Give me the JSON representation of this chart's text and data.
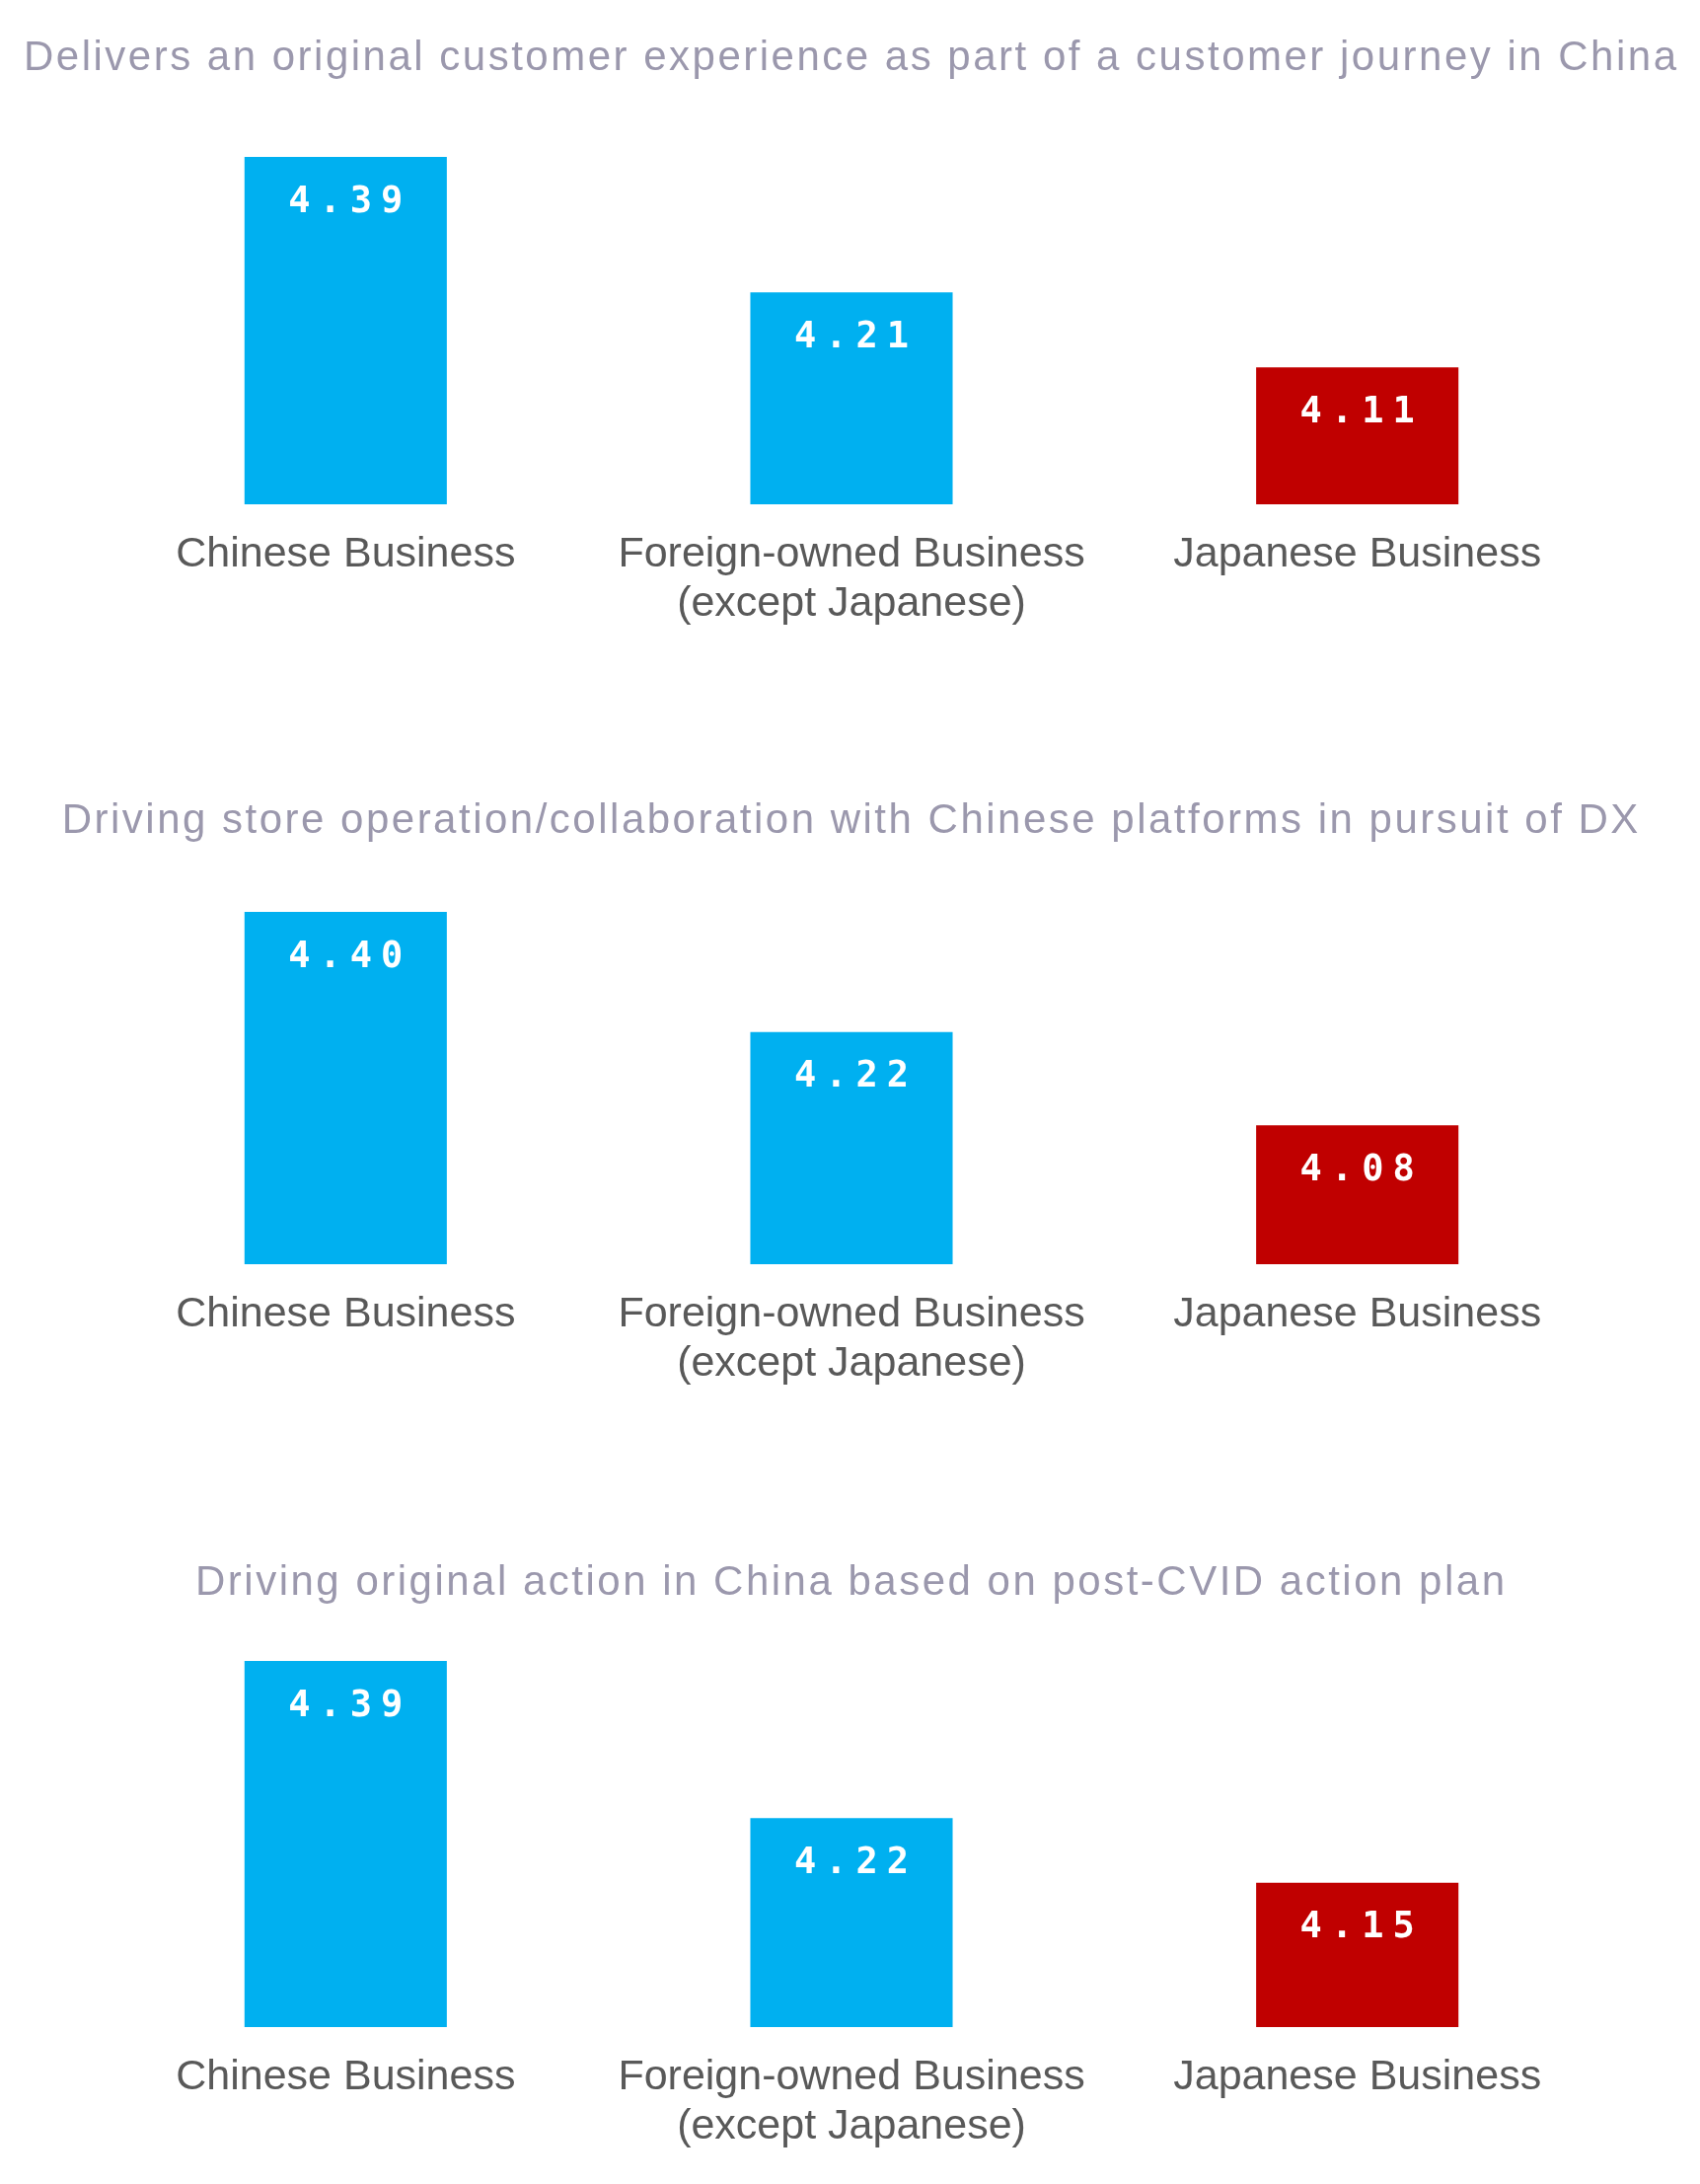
{
  "chart_data": [
    {
      "type": "bar",
      "title": "Delivers an original customer experience as part of a customer journey in China",
      "categories": [
        "Chinese Business",
        "Foreign-owned Business (except Japanese)",
        "Japanese Business"
      ],
      "values": [
        4.39,
        4.21,
        4.11
      ],
      "colors": [
        "#00b0f0",
        "#00b0f0",
        "#c00000"
      ],
      "tick_labels": "x",
      "data_labels": true
    },
    {
      "type": "bar",
      "title": "Driving store operation/collaboration with Chinese platforms in pursuit of DX",
      "categories": [
        "Chinese Business",
        "Foreign-owned Business (except Japanese)",
        "Japanese Business"
      ],
      "values": [
        4.4,
        4.22,
        4.08
      ],
      "value_labels": [
        "4.40",
        "4.22",
        "4.08"
      ],
      "colors": [
        "#00b0f0",
        "#00b0f0",
        "#c00000"
      ],
      "tick_labels": "x"
    },
    {
      "type": "bar",
      "title": "Driving original action in China based on post-CVID action plan",
      "categories": [
        "Chinese Business",
        "Foreign-owned Business (except Japanese)",
        "Japanese Business"
      ],
      "values": [
        4.39,
        4.22,
        4.15
      ],
      "colors": [
        "#00b0f0",
        "#00b0f0",
        "#c00000"
      ],
      "tick_labels": "x",
      "data_labels": true
    }
  ]
}
